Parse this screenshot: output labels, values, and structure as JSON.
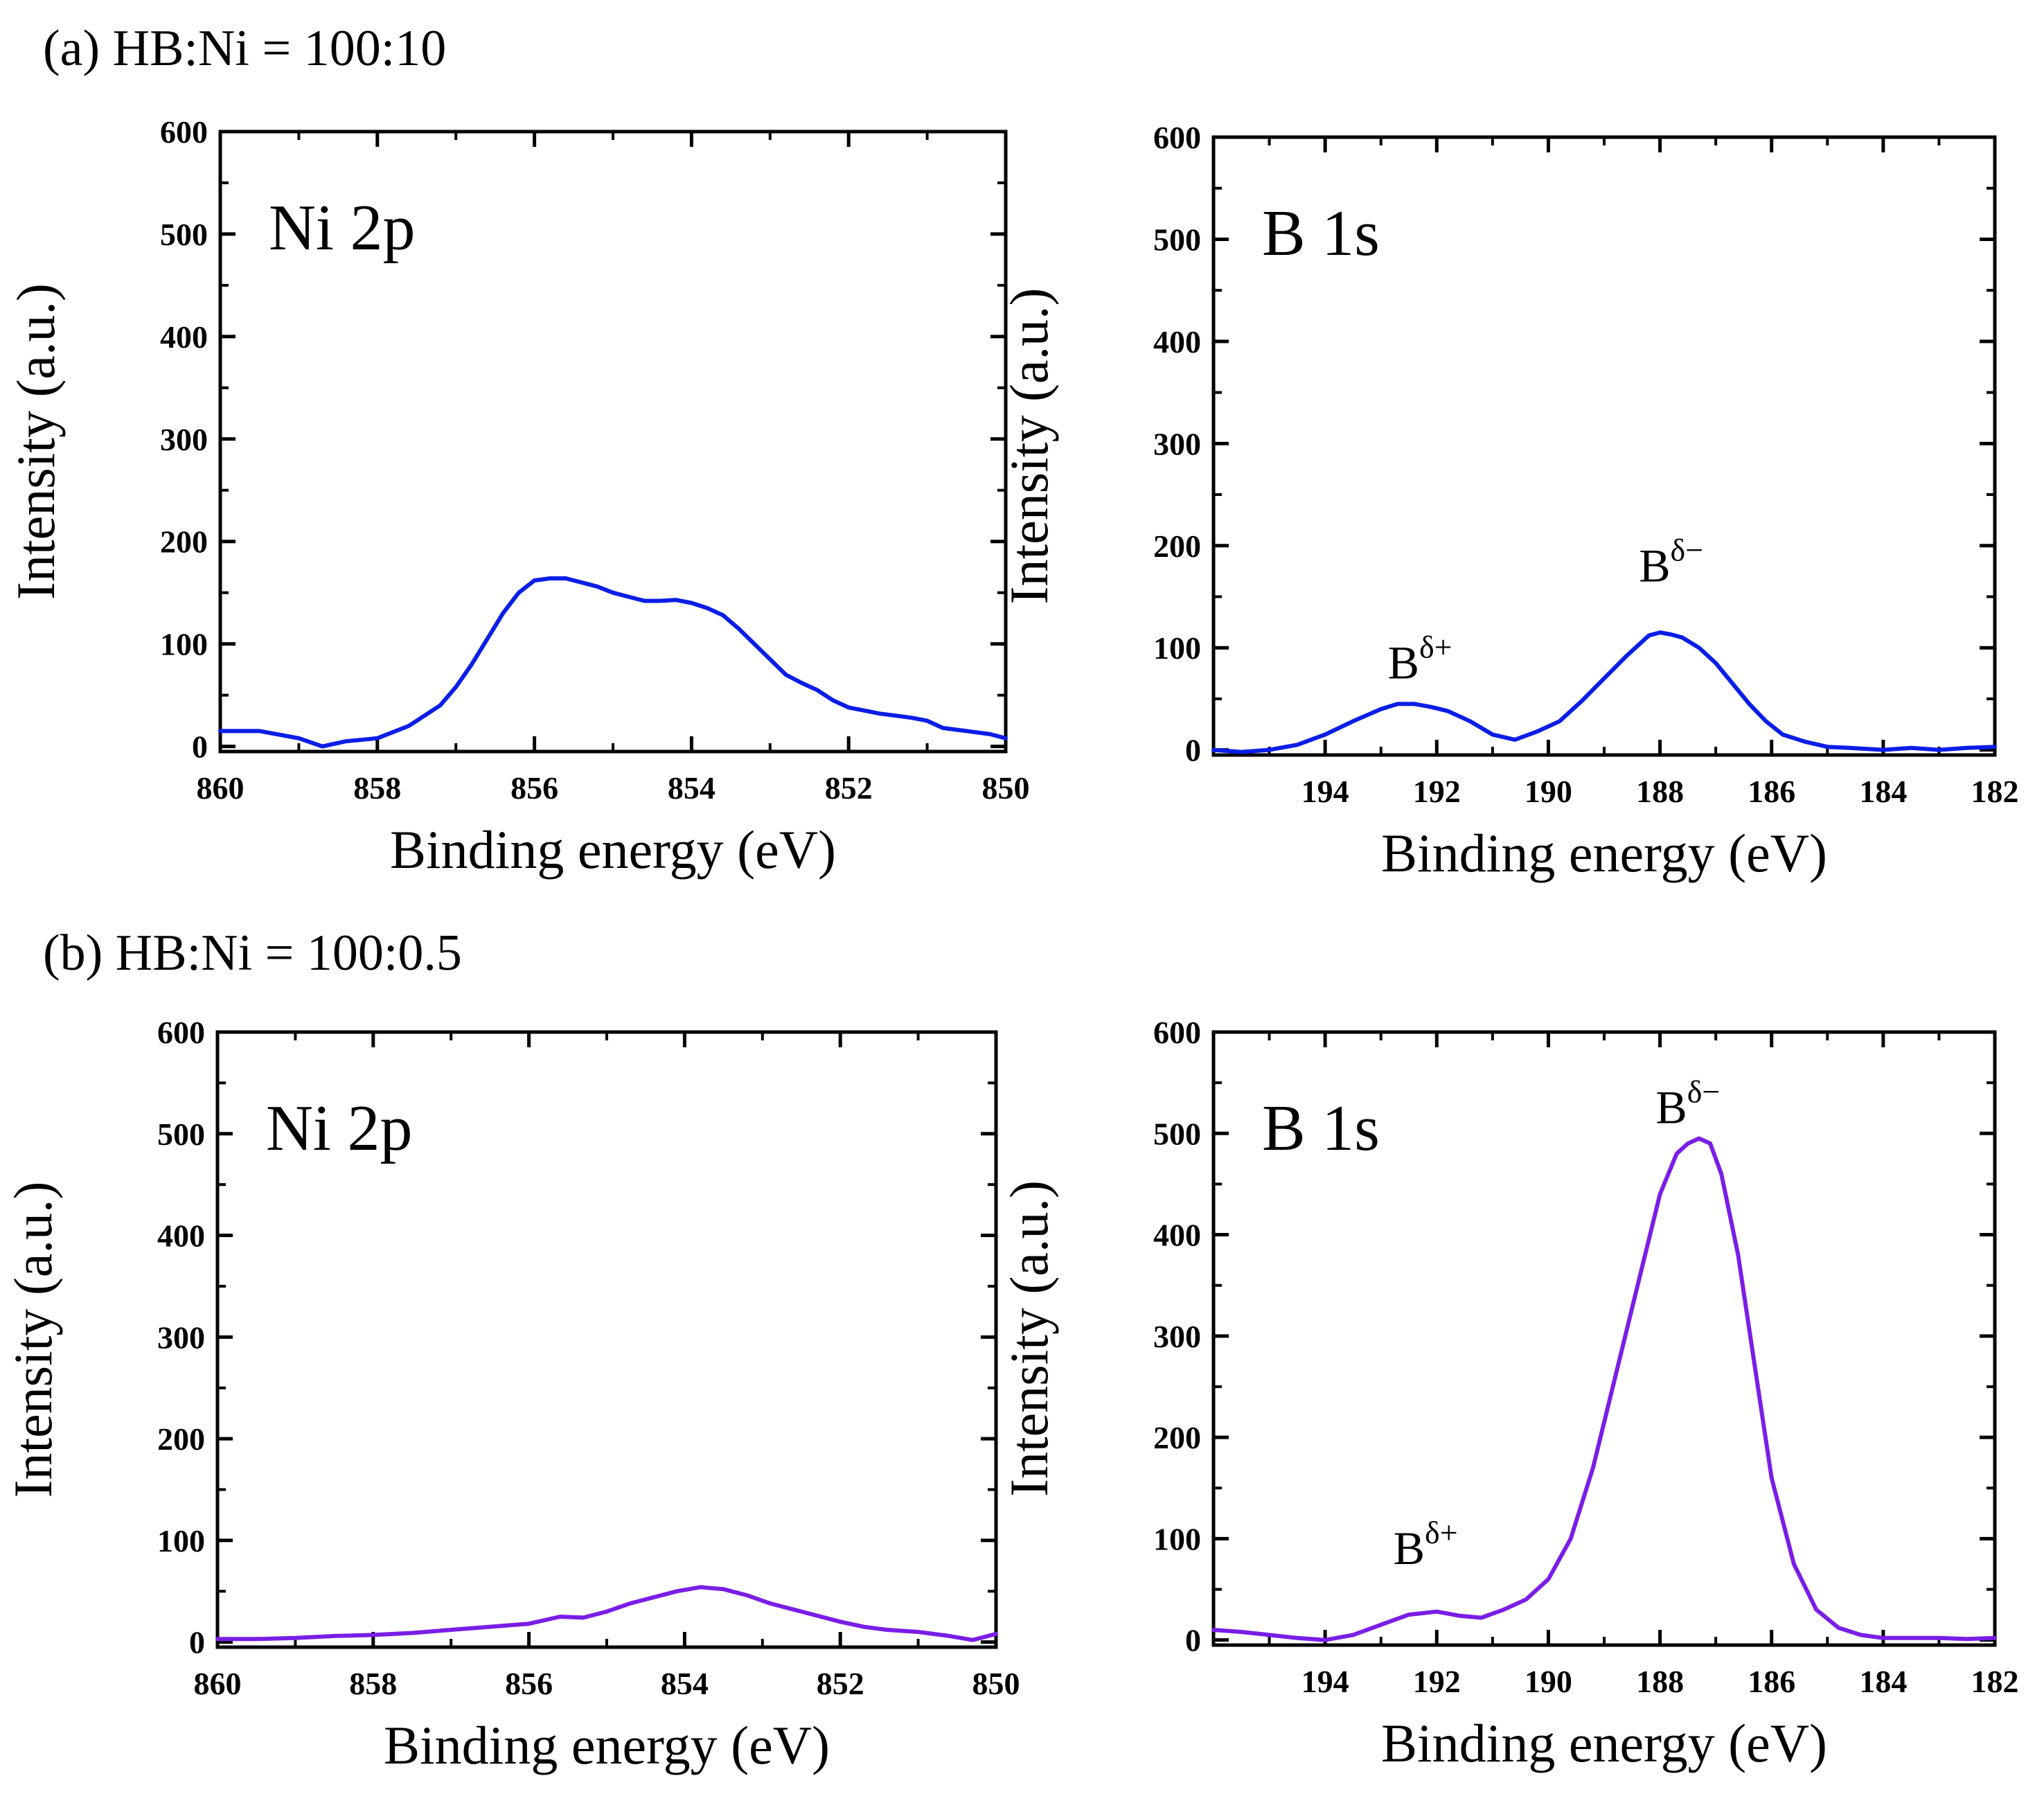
{
  "panels": [
    {
      "label": "(a) HB:Ni = 100:10"
    },
    {
      "label": "(b) HB:Ni = 100:0.5"
    }
  ],
  "chart_data": [
    {
      "id": "a-ni",
      "type": "line",
      "panel": "(a)",
      "title": "Ni 2p",
      "xlabel": "Binding energy (eV)",
      "ylabel": "Intensity (a.u.)",
      "xlim": [
        860,
        850
      ],
      "ylim": [
        -5,
        600
      ],
      "xticks": [
        "860",
        "858",
        "856",
        "854",
        "852",
        "850"
      ],
      "yticks": [
        "0",
        "100",
        "200",
        "300",
        "400",
        "500",
        "600"
      ],
      "annotations": [],
      "series": [
        {
          "name": "Ni 2p",
          "color": "#0a1ee6",
          "x": [
            860,
            859.5,
            859,
            858.7,
            858.4,
            858,
            857.6,
            857.2,
            857,
            856.8,
            856.6,
            856.4,
            856.2,
            856,
            855.8,
            855.6,
            855.4,
            855.2,
            855,
            854.8,
            854.6,
            854.4,
            854.2,
            854,
            853.8,
            853.6,
            853.4,
            853.2,
            853,
            852.8,
            852.6,
            852.4,
            852.2,
            852,
            851.8,
            851.6,
            851.4,
            851.2,
            851,
            850.8,
            850.5,
            850.2,
            850
          ],
          "y": [
            15,
            15,
            8,
            0,
            5,
            8,
            20,
            40,
            58,
            80,
            105,
            130,
            150,
            162,
            164,
            164,
            160,
            156,
            150,
            146,
            142,
            142,
            143,
            140,
            135,
            128,
            115,
            100,
            85,
            70,
            62,
            55,
            45,
            38,
            35,
            32,
            30,
            28,
            25,
            18,
            15,
            12,
            8
          ]
        }
      ]
    },
    {
      "id": "a-b",
      "type": "line",
      "panel": "(a)",
      "title": "B 1s",
      "xlabel": "Binding energy (eV)",
      "ylabel": "Intensity (a.u.)",
      "xlim": [
        196,
        182
      ],
      "ylim": [
        -5,
        600
      ],
      "xticks": [
        "194",
        "192",
        "190",
        "188",
        "186",
        "184",
        "182"
      ],
      "yticks": [
        "0",
        "100",
        "200",
        "300",
        "400",
        "500",
        "600"
      ],
      "annotations": [
        {
          "text": "B",
          "sup": "δ+",
          "x": 192.3,
          "y": 70
        },
        {
          "text": "B",
          "sup": "δ−",
          "x": 187.8,
          "y": 165
        }
      ],
      "series": [
        {
          "name": "B 1s",
          "color": "#0a1ee6",
          "x": [
            196,
            195.5,
            195,
            194.5,
            194,
            193.5,
            193,
            192.7,
            192.4,
            192.1,
            191.8,
            191.4,
            191,
            190.6,
            190.2,
            189.8,
            189.4,
            189,
            188.6,
            188.2,
            188,
            187.8,
            187.6,
            187.3,
            187,
            186.7,
            186.4,
            186.1,
            185.8,
            185.4,
            185,
            184.6,
            184,
            183.5,
            183,
            182.5,
            182
          ],
          "y": [
            0,
            -2,
            0,
            5,
            15,
            28,
            40,
            45,
            45,
            42,
            38,
            28,
            15,
            10,
            18,
            28,
            48,
            70,
            92,
            112,
            115,
            113,
            110,
            100,
            85,
            65,
            45,
            28,
            15,
            8,
            3,
            2,
            0,
            2,
            0,
            2,
            3
          ]
        }
      ]
    },
    {
      "id": "b-ni",
      "type": "line",
      "panel": "(b)",
      "title": "Ni 2p",
      "xlabel": "Binding energy (eV)",
      "ylabel": "Intensity (a.u.)",
      "xlim": [
        860,
        850
      ],
      "ylim": [
        -5,
        600
      ],
      "xticks": [
        "860",
        "858",
        "856",
        "854",
        "852",
        "850"
      ],
      "yticks": [
        "0",
        "100",
        "200",
        "300",
        "400",
        "500",
        "600"
      ],
      "annotations": [],
      "series": [
        {
          "name": "Ni 2p",
          "color": "#7a1ee6",
          "x": [
            860,
            859.5,
            859,
            858.5,
            858,
            857.5,
            857,
            856.5,
            856,
            855.6,
            855.3,
            855,
            854.7,
            854.4,
            854.1,
            853.8,
            853.5,
            853.2,
            852.9,
            852.6,
            852.3,
            852,
            851.7,
            851.4,
            851,
            850.6,
            850.3,
            850
          ],
          "y": [
            3,
            3,
            4,
            6,
            7,
            9,
            12,
            15,
            18,
            25,
            24,
            30,
            38,
            44,
            50,
            54,
            52,
            46,
            38,
            32,
            26,
            20,
            15,
            12,
            10,
            6,
            2,
            8
          ]
        }
      ]
    },
    {
      "id": "b-b",
      "type": "line",
      "panel": "(b)",
      "title": "B 1s",
      "xlabel": "Binding energy (eV)",
      "ylabel": "Intensity (a.u.)",
      "xlim": [
        196,
        182
      ],
      "ylim": [
        -5,
        600
      ],
      "xticks": [
        "194",
        "192",
        "190",
        "188",
        "186",
        "184",
        "182"
      ],
      "yticks": [
        "0",
        "100",
        "200",
        "300",
        "400",
        "500",
        "600"
      ],
      "annotations": [
        {
          "text": "B",
          "sup": "δ+",
          "x": 192.2,
          "y": 75
        },
        {
          "text": "B",
          "sup": "δ−",
          "x": 187.5,
          "y": 510
        }
      ],
      "series": [
        {
          "name": "B 1s",
          "color": "#7a1ee6",
          "x": [
            196,
            195.5,
            195,
            194.5,
            194,
            193.5,
            193,
            192.5,
            192,
            191.6,
            191.2,
            190.8,
            190.4,
            190,
            189.6,
            189.2,
            188.8,
            188.4,
            188,
            187.7,
            187.5,
            187.3,
            187.1,
            186.9,
            186.6,
            186.3,
            186,
            185.6,
            185.2,
            184.8,
            184.4,
            184,
            183.5,
            183,
            182.5,
            182
          ],
          "y": [
            10,
            8,
            5,
            2,
            0,
            5,
            15,
            25,
            28,
            24,
            22,
            30,
            40,
            60,
            100,
            170,
            260,
            350,
            440,
            480,
            490,
            495,
            490,
            460,
            380,
            270,
            160,
            75,
            30,
            12,
            5,
            2,
            2,
            2,
            1,
            2
          ]
        }
      ]
    }
  ]
}
